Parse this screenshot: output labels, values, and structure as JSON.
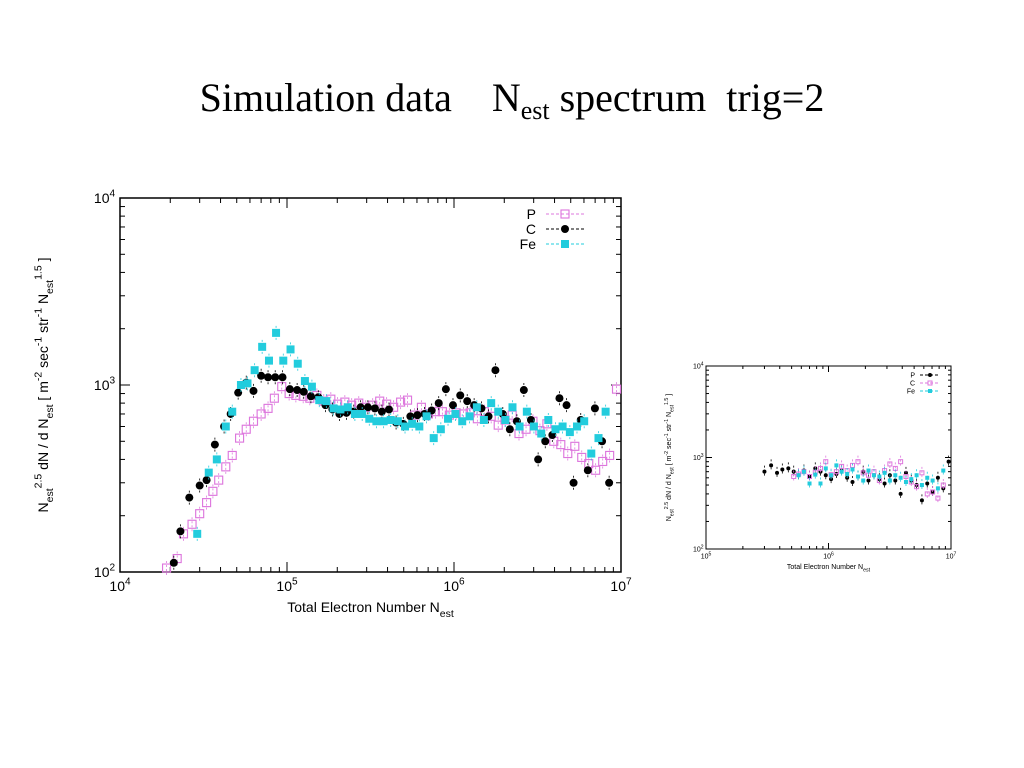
{
  "slide": {
    "title_main": "Simulation data    N",
    "title_sub": "est",
    "title_rest": " spectrum  trig=2"
  },
  "colors": {
    "P": "#dd77dd",
    "C": "#000000",
    "Fe": "#22ccdd"
  },
  "chart_data": [
    {
      "type": "scatter",
      "xlabel": "Total Electron Number  N",
      "xlabel_sub": "est",
      "ylabel": "N_est^2.5 dN / d N_est [ m^-2 sec^-1 str^-1 N_est^1.5 ]",
      "x_scale": "log",
      "y_scale": "log",
      "xlim": [
        10000,
        10000000
      ],
      "ylim": [
        100,
        10000
      ],
      "x_ticks": [
        {
          "value": 10000,
          "base": "10",
          "exp": "4"
        },
        {
          "value": 100000,
          "base": "10",
          "exp": "5"
        },
        {
          "value": 1000000,
          "base": "10",
          "exp": "6"
        },
        {
          "value": 10000000,
          "base": "10",
          "exp": "7"
        }
      ],
      "y_ticks": [
        {
          "value": 100,
          "base": "10",
          "exp": "2"
        },
        {
          "value": 1000,
          "base": "10",
          "exp": "3"
        },
        {
          "value": 10000,
          "base": "10",
          "exp": "4"
        }
      ],
      "legend_position": "top-right",
      "series": [
        {
          "name": "P",
          "marker": "open-square",
          "x": [
            19000,
            22000,
            24000,
            27000,
            30000,
            33000,
            36000,
            39000,
            43000,
            47000,
            52000,
            57000,
            63000,
            70000,
            77000,
            84000,
            93000,
            103000,
            113000,
            125000,
            137000,
            151000,
            166000,
            183000,
            201000,
            222000,
            244000,
            269000,
            296000,
            326000,
            359000,
            395000,
            435000,
            479000,
            527000,
            580000,
            638000,
            703000,
            774000,
            852000,
            938000,
            1030000,
            1140000,
            1250000,
            1380000,
            1520000,
            1670000,
            1840000,
            2020000,
            2230000,
            2450000,
            2700000,
            2970000,
            3270000,
            3600000,
            3960000,
            4360000,
            4800000,
            5290000,
            5820000,
            6410000,
            7050000,
            7770000,
            8550000,
            9400000
          ],
          "y": [
            105,
            118,
            160,
            180,
            205,
            235,
            270,
            310,
            365,
            420,
            520,
            580,
            640,
            700,
            750,
            850,
            980,
            900,
            880,
            870,
            850,
            880,
            820,
            840,
            790,
            810,
            780,
            800,
            760,
            780,
            820,
            790,
            760,
            810,
            830,
            690,
            760,
            700,
            720,
            720,
            690,
            710,
            700,
            710,
            660,
            720,
            680,
            610,
            650,
            690,
            550,
            580,
            640,
            570,
            620,
            500,
            480,
            430,
            470,
            410,
            380,
            350,
            390,
            420,
            950
          ]
        },
        {
          "name": "C",
          "marker": "filled-circle",
          "x": [
            21000,
            23000,
            26000,
            30000,
            33000,
            37000,
            42000,
            46000,
            51000,
            57000,
            63000,
            70000,
            77000,
            85000,
            94000,
            104000,
            115000,
            126000,
            139000,
            154000,
            170000,
            187000,
            206000,
            227000,
            251000,
            276000,
            305000,
            336000,
            370000,
            408000,
            450000,
            497000,
            548000,
            604000,
            666000,
            735000,
            810000,
            894000,
            986000,
            1090000,
            1200000,
            1320000,
            1460000,
            1610000,
            1770000,
            1960000,
            2160000,
            2380000,
            2620000,
            2890000,
            3190000,
            3520000,
            3880000,
            4280000,
            4720000,
            5200000,
            5740000,
            6330000,
            6980000,
            7700000,
            8490000
          ],
          "y": [
            112,
            165,
            250,
            290,
            310,
            480,
            600,
            700,
            910,
            1030,
            930,
            1120,
            1100,
            1100,
            1100,
            950,
            940,
            920,
            870,
            860,
            780,
            740,
            700,
            710,
            720,
            760,
            760,
            750,
            720,
            740,
            630,
            620,
            680,
            690,
            700,
            730,
            800,
            950,
            780,
            880,
            820,
            780,
            750,
            680,
            1200,
            700,
            580,
            640,
            940,
            650,
            400,
            500,
            540,
            850,
            780,
            300,
            650,
            350,
            750,
            500,
            300
          ]
        },
        {
          "name": "Fe",
          "marker": "filled-square",
          "x": [
            29000,
            34000,
            38000,
            43000,
            47000,
            53000,
            58000,
            64000,
            71000,
            78000,
            86000,
            95000,
            105000,
            116000,
            128000,
            141000,
            156000,
            172000,
            190000,
            209000,
            231000,
            255000,
            282000,
            311000,
            343000,
            379000,
            418000,
            461000,
            509000,
            562000,
            620000,
            685000,
            756000,
            834000,
            921000,
            1020000,
            1120000,
            1240000,
            1370000,
            1510000,
            1670000,
            1840000,
            2030000,
            2240000,
            2470000,
            2730000,
            3010000,
            3330000,
            3670000,
            4050000,
            4470000,
            4940000,
            5450000,
            6020000,
            6640000,
            7330000,
            8090000
          ],
          "y": [
            160,
            340,
            400,
            600,
            720,
            1000,
            1020,
            1200,
            1600,
            1350,
            1900,
            1350,
            1550,
            1300,
            1050,
            980,
            830,
            820,
            750,
            740,
            760,
            700,
            700,
            660,
            640,
            640,
            650,
            640,
            600,
            620,
            600,
            680,
            520,
            580,
            660,
            700,
            640,
            680,
            760,
            650,
            800,
            720,
            650,
            760,
            600,
            720,
            600,
            550,
            650,
            580,
            600,
            560,
            600,
            640,
            430,
            520,
            720
          ]
        }
      ]
    },
    {
      "type": "scatter",
      "xlabel": "Total Electron Number  N",
      "xlabel_sub": "est",
      "ylabel": "N_est^2.5 dN / d N_est [ m^-2 sec^-1 str^-1 N_est^1.5 ]",
      "x_scale": "log",
      "y_scale": "log",
      "xlim": [
        100000,
        10000000
      ],
      "ylim": [
        100,
        10000
      ],
      "x_ticks": [
        {
          "value": 100000,
          "base": "10",
          "exp": "5"
        },
        {
          "value": 1000000,
          "base": "10",
          "exp": "6"
        },
        {
          "value": 10000000,
          "base": "10",
          "exp": "7"
        }
      ],
      "y_ticks": [
        {
          "value": 100,
          "base": "10",
          "exp": "2"
        },
        {
          "value": 1000,
          "base": "10",
          "exp": "3"
        },
        {
          "value": 10000,
          "base": "10",
          "exp": "4"
        }
      ],
      "legend_position": "top-right",
      "series": [
        {
          "name": "P",
          "marker": "filled-circle",
          "color_key": "C",
          "x": [
            300000,
            340000,
            380000,
            420000,
            470000,
            520000,
            570000,
            630000,
            700000,
            780000,
            860000,
            950000,
            1050000,
            1160000,
            1280000,
            1420000,
            1570000,
            1740000,
            1920000,
            2120000,
            2350000,
            2600000,
            2870000,
            3170000,
            3510000,
            3880000,
            4290000,
            4740000,
            5240000,
            5790000,
            6400000,
            7080000,
            7820000,
            8650000,
            9560000
          ],
          "y": [
            700,
            820,
            680,
            740,
            760,
            700,
            640,
            720,
            620,
            760,
            700,
            640,
            580,
            660,
            720,
            600,
            540,
            620,
            700,
            560,
            640,
            580,
            520,
            640,
            560,
            400,
            680,
            560,
            500,
            340,
            520,
            420,
            600,
            460,
            900
          ]
        },
        {
          "name": "C",
          "marker": "open-square",
          "color_key": "P",
          "x": [
            520000,
            570000,
            630000,
            700000,
            780000,
            860000,
            950000,
            1050000,
            1160000,
            1280000,
            1420000,
            1570000,
            1740000,
            1920000,
            2120000,
            2350000,
            2600000,
            2870000,
            3170000,
            3510000,
            3880000,
            4290000,
            4740000,
            5240000,
            5790000,
            6400000,
            7080000,
            7820000,
            8650000
          ],
          "y": [
            620,
            660,
            700,
            620,
            690,
            760,
            900,
            650,
            700,
            800,
            720,
            820,
            900,
            680,
            640,
            700,
            560,
            720,
            850,
            760,
            900,
            620,
            540,
            480,
            680,
            400,
            420,
            360,
            500
          ]
        },
        {
          "name": "Fe",
          "marker": "filled-square",
          "color_key": "Fe",
          "x": [
            570000,
            630000,
            700000,
            780000,
            860000,
            950000,
            1050000,
            1160000,
            1280000,
            1420000,
            1570000,
            1740000,
            1920000,
            2120000,
            2350000,
            2600000,
            2870000,
            3170000,
            3510000,
            3880000,
            4290000,
            4740000,
            5240000,
            5790000,
            6400000,
            7080000,
            7820000,
            8650000
          ],
          "y": [
            640,
            700,
            520,
            650,
            520,
            760,
            640,
            820,
            700,
            660,
            740,
            620,
            560,
            720,
            640,
            620,
            680,
            560,
            640,
            600,
            540,
            580,
            640,
            500,
            600,
            560,
            460,
            720
          ]
        }
      ]
    }
  ]
}
